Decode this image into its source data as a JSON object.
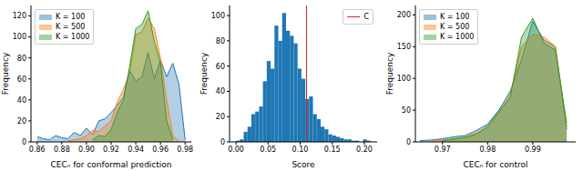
{
  "chart_data": [
    {
      "type": "area",
      "xlabel": "CECₙ for conformal prediction",
      "ylabel": "Frequency",
      "x": [
        0.86,
        0.865,
        0.87,
        0.875,
        0.88,
        0.885,
        0.89,
        0.895,
        0.9,
        0.905,
        0.91,
        0.915,
        0.92,
        0.925,
        0.93,
        0.935,
        0.94,
        0.945,
        0.95,
        0.955,
        0.96,
        0.965,
        0.97,
        0.975,
        0.98
      ],
      "series": [
        {
          "name": "K = 100",
          "color": "#1f77b4",
          "values": [
            5,
            3,
            2,
            6,
            4,
            3,
            9,
            6,
            13,
            7,
            20,
            22,
            28,
            35,
            43,
            68,
            58,
            62,
            85,
            60,
            78,
            62,
            75,
            55,
            2
          ]
        },
        {
          "name": "K = 500",
          "color": "#ff7f0e",
          "values": [
            null,
            null,
            null,
            null,
            null,
            1,
            2,
            3,
            6,
            11,
            10,
            15,
            20,
            38,
            50,
            66,
            102,
            105,
            118,
            108,
            80,
            40,
            6,
            1,
            null
          ]
        },
        {
          "name": "K = 1000",
          "color": "#2ca02c",
          "values": [
            null,
            null,
            null,
            null,
            null,
            null,
            null,
            null,
            null,
            2,
            6,
            5,
            12,
            28,
            40,
            72,
            108,
            112,
            125,
            96,
            75,
            20,
            2,
            null,
            null
          ]
        }
      ],
      "xlim": [
        0.855,
        0.985
      ],
      "xticks": [
        0.86,
        0.88,
        {
          "value": 0.9,
          "label": "0.90"
        },
        0.92,
        0.94,
        0.96,
        0.98
      ],
      "ylim": [
        0,
        130
      ],
      "yticks": [
        0,
        20,
        40,
        60,
        80,
        100,
        120
      ],
      "grid": false,
      "legend": "upper left"
    },
    {
      "type": "histogram",
      "xlabel": "Score",
      "ylabel": "Frequency",
      "color": "#1f77b4",
      "bins": [
        0,
        0.006,
        0.012,
        0.018,
        0.024,
        0.03,
        0.036,
        0.042,
        0.048,
        0.054,
        0.06,
        0.066,
        0.072,
        0.078,
        0.084,
        0.09,
        0.096,
        0.102,
        0.108,
        0.114,
        0.12,
        0.126,
        0.132,
        0.138,
        0.144,
        0.15,
        0.156,
        0.162,
        0.168,
        0.174,
        0.18,
        0.186,
        0.192,
        0.198,
        0.204,
        0.21
      ],
      "counts": [
        1,
        2,
        8,
        12,
        22,
        24,
        28,
        48,
        64,
        58,
        92,
        80,
        102,
        88,
        84,
        78,
        58,
        50,
        34,
        36,
        22,
        18,
        12,
        10,
        6,
        5,
        4,
        3,
        2,
        2,
        1,
        1,
        0,
        2,
        1
      ],
      "reference_lines": [
        {
          "x": 0.11,
          "label": "C",
          "color": "#d62728"
        }
      ],
      "xlim": [
        -0.01,
        0.22
      ],
      "xticks": [
        {
          "value": 0,
          "label": "0.00"
        },
        0.05,
        {
          "value": 0.1,
          "label": "0.10"
        },
        0.15,
        {
          "value": 0.2,
          "label": "0.20"
        }
      ],
      "ylim": [
        0,
        108
      ],
      "yticks": [
        0,
        20,
        40,
        60,
        80,
        100
      ],
      "grid": false,
      "legend": "upper right"
    },
    {
      "type": "area",
      "xlabel": "CECₙ for control",
      "ylabel": "Frequency",
      "x": [
        0.965,
        0.9675,
        0.97,
        0.9725,
        0.975,
        0.9775,
        0.98,
        0.9825,
        0.985,
        0.9875,
        0.99,
        0.9925,
        0.995,
        0.9975
      ],
      "series": [
        {
          "name": "K = 100",
          "color": "#1f77b4",
          "values": [
            2,
            3,
            5,
            8,
            10,
            18,
            28,
            50,
            80,
            130,
            190,
            160,
            150,
            20
          ]
        },
        {
          "name": "K = 500",
          "color": "#ff7f0e",
          "values": [
            null,
            1,
            3,
            4,
            8,
            14,
            22,
            45,
            75,
            150,
            170,
            165,
            150,
            25
          ]
        },
        {
          "name": "K = 1000",
          "color": "#2ca02c",
          "values": [
            null,
            null,
            2,
            5,
            7,
            12,
            25,
            48,
            70,
            165,
            195,
            155,
            145,
            30
          ]
        }
      ],
      "xlim": [
        0.964,
        0.9995
      ],
      "xticks": [
        0.97,
        0.98,
        0.99
      ],
      "ylim": [
        0,
        215
      ],
      "yticks": [
        0,
        50,
        100,
        150,
        200
      ],
      "grid": false,
      "legend": "upper left"
    }
  ]
}
